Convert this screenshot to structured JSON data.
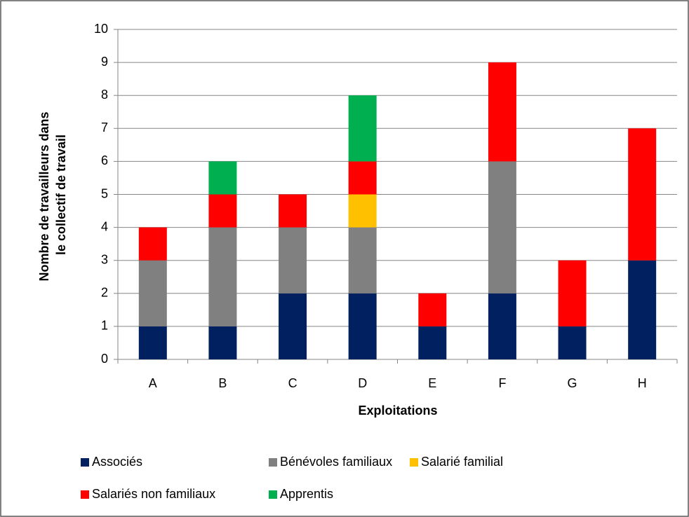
{
  "chart_data": {
    "type": "stacked_bar",
    "xlabel": "Exploitations",
    "ylabel": [
      "Nombre de travailleurs dans",
      "le collectif de travail"
    ],
    "categories": [
      "A",
      "B",
      "C",
      "D",
      "E",
      "F",
      "G",
      "H"
    ],
    "series": [
      {
        "name": "Associés",
        "color": "#002060",
        "values": [
          1,
          1,
          2,
          2,
          1,
          2,
          1,
          3
        ]
      },
      {
        "name": "Bénévoles familiaux",
        "color": "#808080",
        "values": [
          2,
          3,
          2,
          2,
          0,
          4,
          0,
          0
        ]
      },
      {
        "name": "Salarié familial",
        "color": "#ffc000",
        "values": [
          0,
          0,
          0,
          1,
          0,
          0,
          0,
          0
        ]
      },
      {
        "name": "Salariés non familiaux",
        "color": "#ff0000",
        "values": [
          1,
          1,
          1,
          1,
          1,
          3,
          2,
          4
        ]
      },
      {
        "name": "Apprentis",
        "color": "#00b050",
        "values": [
          0,
          1,
          0,
          2,
          0,
          0,
          0,
          0
        ]
      }
    ],
    "ylim": [
      0,
      10
    ],
    "yticks": [
      0,
      1,
      2,
      3,
      4,
      5,
      6,
      7,
      8,
      9,
      10
    ],
    "grid": true,
    "legend": "bottom"
  }
}
